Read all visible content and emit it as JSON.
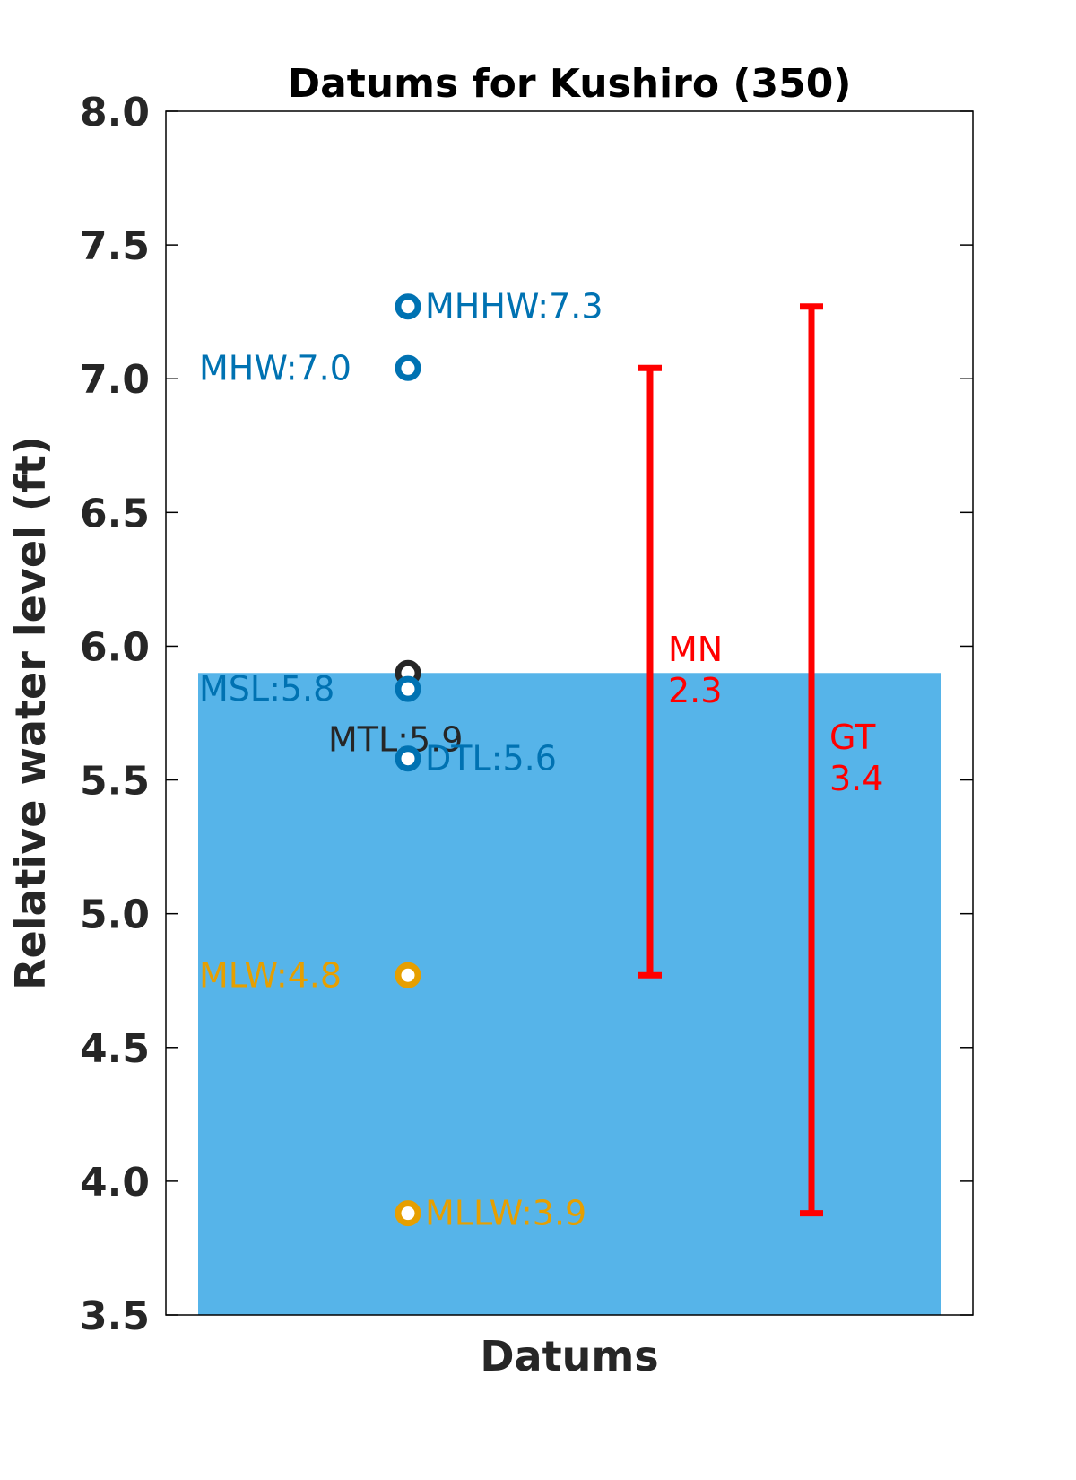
{
  "chart_data": {
    "type": "scatter",
    "title": "Datums for Kushiro (350)",
    "xlabel": "Datums",
    "ylabel": "Relative water level (ft)",
    "ylim": [
      3.5,
      8.0
    ],
    "yticks": [
      "3.5",
      "4.0",
      "4.5",
      "5.0",
      "5.5",
      "6.0",
      "6.5",
      "7.0",
      "7.5",
      "8.0"
    ],
    "grid": false,
    "water_level": {
      "value": 5.9,
      "color": "#56b4e9"
    },
    "datums": [
      {
        "name": "MHHW",
        "label": "MHHW:7.3",
        "value": 7.27,
        "color": "#0072b2",
        "label_side": "right"
      },
      {
        "name": "MHW",
        "label": "MHW:7.0",
        "value": 7.04,
        "color": "#0072b2",
        "label_side": "left"
      },
      {
        "name": "MTL",
        "label": "MTL:5.9",
        "value": 5.9,
        "color": "#262626",
        "label_side": "below"
      },
      {
        "name": "MSL",
        "label": "MSL:5.8",
        "value": 5.84,
        "color": "#0072b2",
        "label_side": "left"
      },
      {
        "name": "DTL",
        "label": "DTL:5.6",
        "value": 5.58,
        "color": "#0072b2",
        "label_side": "right"
      },
      {
        "name": "MLW",
        "label": "MLW:4.8",
        "value": 4.77,
        "color": "#e69f00",
        "label_side": "left"
      },
      {
        "name": "MLLW",
        "label": "MLLW:3.9",
        "value": 3.88,
        "color": "#e69f00",
        "label_side": "right"
      }
    ],
    "ranges": [
      {
        "name": "MN",
        "value_label": "2.3",
        "low": 4.77,
        "high": 7.04,
        "color": "#ff0000"
      },
      {
        "name": "GT",
        "value_label": "3.4",
        "low": 3.88,
        "high": 7.27,
        "color": "#ff0000"
      }
    ]
  }
}
